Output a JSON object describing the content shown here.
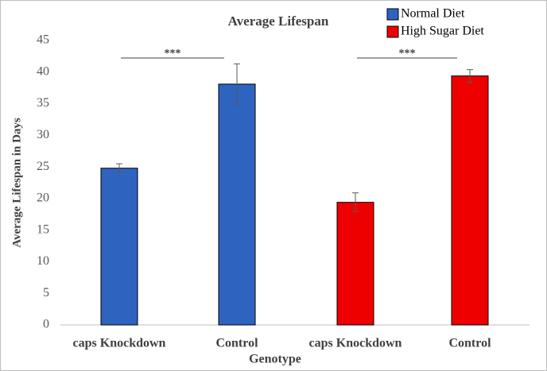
{
  "chart_data": {
    "type": "bar",
    "title": "Average  Lifespan",
    "x_label": "Genotype",
    "y_label": "Average Lifespan in Days",
    "categories": [
      "caps Knockdown",
      "Control",
      "caps Knockdown",
      "Control"
    ],
    "series": [
      {
        "name": "Normal Diet",
        "color": "#2e64c0",
        "values": [
          24.8,
          38.1,
          null,
          null
        ],
        "errors": [
          0.7,
          3.2,
          null,
          null
        ]
      },
      {
        "name": "High Sugar Diet",
        "color": "#ee0000",
        "values": [
          null,
          null,
          19.4,
          39.4
        ],
        "errors": [
          null,
          null,
          1.5,
          1.0
        ]
      }
    ],
    "annotations": [
      "***",
      "***"
    ],
    "ylim": [
      0,
      45
    ],
    "yticks": [
      0,
      5,
      10,
      15,
      20,
      25,
      30,
      35,
      40,
      45
    ],
    "grid": false,
    "legend": "top-right"
  }
}
